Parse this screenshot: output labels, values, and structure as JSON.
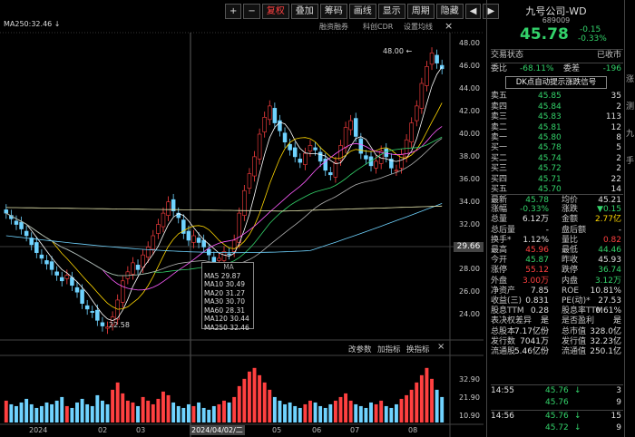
{
  "toolbar": {
    "buttons": [
      "+",
      "−",
      "复权",
      "叠加",
      "筹码",
      "画线",
      "显示",
      "周期",
      "隐藏",
      "◀",
      "▶"
    ],
    "red_index": 2
  },
  "ma_header": "MA250:32.46 ↓",
  "top_links": [
    "融资融券",
    "科创CDR",
    "设置均线"
  ],
  "top_close": "×",
  "price_axis": [
    "48.00",
    "46.00",
    "44.00",
    "42.00",
    "40.00",
    "38.00",
    "36.00",
    "34.00",
    "32.00",
    "30.00",
    "28.00",
    "26.00",
    "24.00"
  ],
  "current_price_tag": "29.66",
  "high_label": "48.00 ←",
  "low_label": "22.58",
  "ma_tooltip": {
    "title": "MA",
    "rows": [
      "MA5  29.87",
      "MA10  30.49",
      "MA20  31.27",
      "MA30  30.70",
      "MA60  28.31",
      "MA120  30.44",
      "MA250  32.46"
    ]
  },
  "sub_buttons": [
    "改参数",
    "加指标",
    "换指标",
    "×"
  ],
  "vol_axis": [
    "32.90",
    "21.90",
    "10.90"
  ],
  "x_axis": [
    "2024",
    "02",
    "03",
    "2024/04/02/二",
    "05",
    "06",
    "07",
    "08"
  ],
  "stock": {
    "name": "九号公司-WD",
    "code": "689009",
    "price": "45.78",
    "change": "-0.15",
    "change_pct": "-0.33%"
  },
  "status": {
    "label": "交易状态",
    "value": "已收市"
  },
  "ratio": {
    "l1": "委比",
    "v1": "-68.11%",
    "l2": "委差",
    "v2": "-196"
  },
  "signal_banner": "DK点自动提示涨跌信号",
  "asks": [
    [
      "卖五",
      "45.85",
      "35"
    ],
    [
      "卖四",
      "45.84",
      "2"
    ],
    [
      "卖三",
      "45.83",
      "113"
    ],
    [
      "卖二",
      "45.81",
      "12"
    ],
    [
      "卖一",
      "45.80",
      "8"
    ]
  ],
  "bids": [
    [
      "买一",
      "45.78",
      "5"
    ],
    [
      "买二",
      "45.74",
      "2"
    ],
    [
      "买三",
      "45.72",
      "2"
    ],
    [
      "买四",
      "45.71",
      "22"
    ],
    [
      "买五",
      "45.70",
      "14"
    ]
  ],
  "stats": [
    [
      "最新",
      "45.78",
      "均价",
      "45.21"
    ],
    [
      "涨幅",
      "-0.33%",
      "涨跌",
      "▼0.15"
    ],
    [
      "总量",
      "6.12万",
      "金额",
      "2.77亿"
    ],
    [
      "总后量",
      "-",
      "盘后额",
      "-"
    ],
    [
      "换手*",
      "1.12%",
      "量比",
      "0.82"
    ],
    [
      "最高",
      "45.96",
      "最低",
      "44.46"
    ],
    [
      "今开",
      "45.87",
      "昨收",
      "45.93"
    ],
    [
      "涨停",
      "55.12",
      "跌停",
      "36.74"
    ],
    [
      "外盘",
      "3.00万",
      "内盘",
      "3.12万"
    ],
    [
      "净资产",
      "7.85",
      "ROE",
      "10.81%"
    ],
    [
      "收益(三)",
      "0.831",
      "PE(动)*",
      "27.53"
    ],
    [
      "股息TTM",
      "0.28",
      "股息率TTM",
      "0.61%"
    ],
    [
      "表决权差异",
      "是",
      "是否盈利",
      "是"
    ],
    [
      "总股本",
      "7.17亿份",
      "总市值",
      "328.0亿"
    ],
    [
      "发行数",
      "7041万",
      "发行值",
      "32.23亿"
    ],
    [
      "流通股",
      "5.46亿份",
      "流通值",
      "250.1亿"
    ]
  ],
  "ticks": [
    [
      "14:55",
      "45.76",
      "↓",
      "3"
    ],
    [
      "",
      "45.76",
      "",
      "9"
    ],
    [
      "14:56",
      "45.76",
      "↓",
      "15"
    ],
    [
      "",
      "45.72",
      "↓",
      "9"
    ]
  ],
  "edge_chars": [
    "涨",
    "测",
    "九",
    "手"
  ],
  "colors": {
    "red": "#ff4040",
    "green": "#33d26a",
    "cyan": "#6fd3ff",
    "yellow": "#ffd700"
  },
  "chart_data": {
    "type": "candlestick",
    "ma_lines": [
      "MA5",
      "MA10",
      "MA20",
      "MA30",
      "MA60",
      "MA120",
      "MA250"
    ],
    "price_range": [
      22,
      49
    ],
    "high": 48.0,
    "low": 22.58,
    "last": 45.78,
    "closes": [
      33.0,
      32.5,
      32.0,
      31.6,
      31.0,
      30.2,
      29.5,
      29.0,
      28.5,
      28.0,
      27.5,
      27.0,
      27.5,
      26.6,
      26.0,
      25.0,
      24.5,
      24.2,
      23.5,
      23.0,
      22.9,
      23.8,
      25.3,
      27.0,
      27.8,
      28.6,
      28.0,
      29.3,
      30.0,
      31.0,
      32.0,
      33.0,
      34.0,
      33.2,
      32.6,
      31.2,
      30.6,
      31.0,
      30.4,
      30.0,
      29.3,
      28.6,
      29.0,
      29.6,
      29.4,
      30.6,
      33.0,
      35.0,
      36.5,
      38.0,
      40.0,
      41.5,
      42.5,
      41.0,
      40.3,
      39.3,
      38.6,
      38.0,
      37.5,
      38.3,
      39.0,
      38.6,
      37.6,
      36.8,
      36.4,
      37.5,
      39.0,
      40.6,
      41.2,
      39.8,
      38.3,
      37.8,
      37.2,
      37.6,
      38.5,
      38.0,
      37.0,
      36.8,
      38.2,
      39.5,
      41.0,
      42.5,
      44.5,
      46.0,
      47.2,
      46.3,
      45.8
    ],
    "volumes": [
      12,
      10,
      9,
      11,
      13,
      10,
      8,
      9,
      11,
      10,
      12,
      14,
      9,
      8,
      11,
      13,
      10,
      9,
      15,
      12,
      10,
      18,
      22,
      16,
      12,
      11,
      9,
      14,
      12,
      10,
      13,
      17,
      15,
      11,
      9,
      8,
      10,
      9,
      11,
      8,
      7,
      9,
      10,
      12,
      11,
      14,
      20,
      24,
      28,
      30,
      26,
      22,
      18,
      14,
      12,
      10,
      11,
      9,
      8,
      10,
      12,
      11,
      9,
      8,
      10,
      12,
      14,
      16,
      12,
      10,
      9,
      8,
      11,
      10,
      12,
      9,
      8,
      10,
      13,
      15,
      18,
      22,
      26,
      30,
      24,
      18,
      14
    ]
  }
}
